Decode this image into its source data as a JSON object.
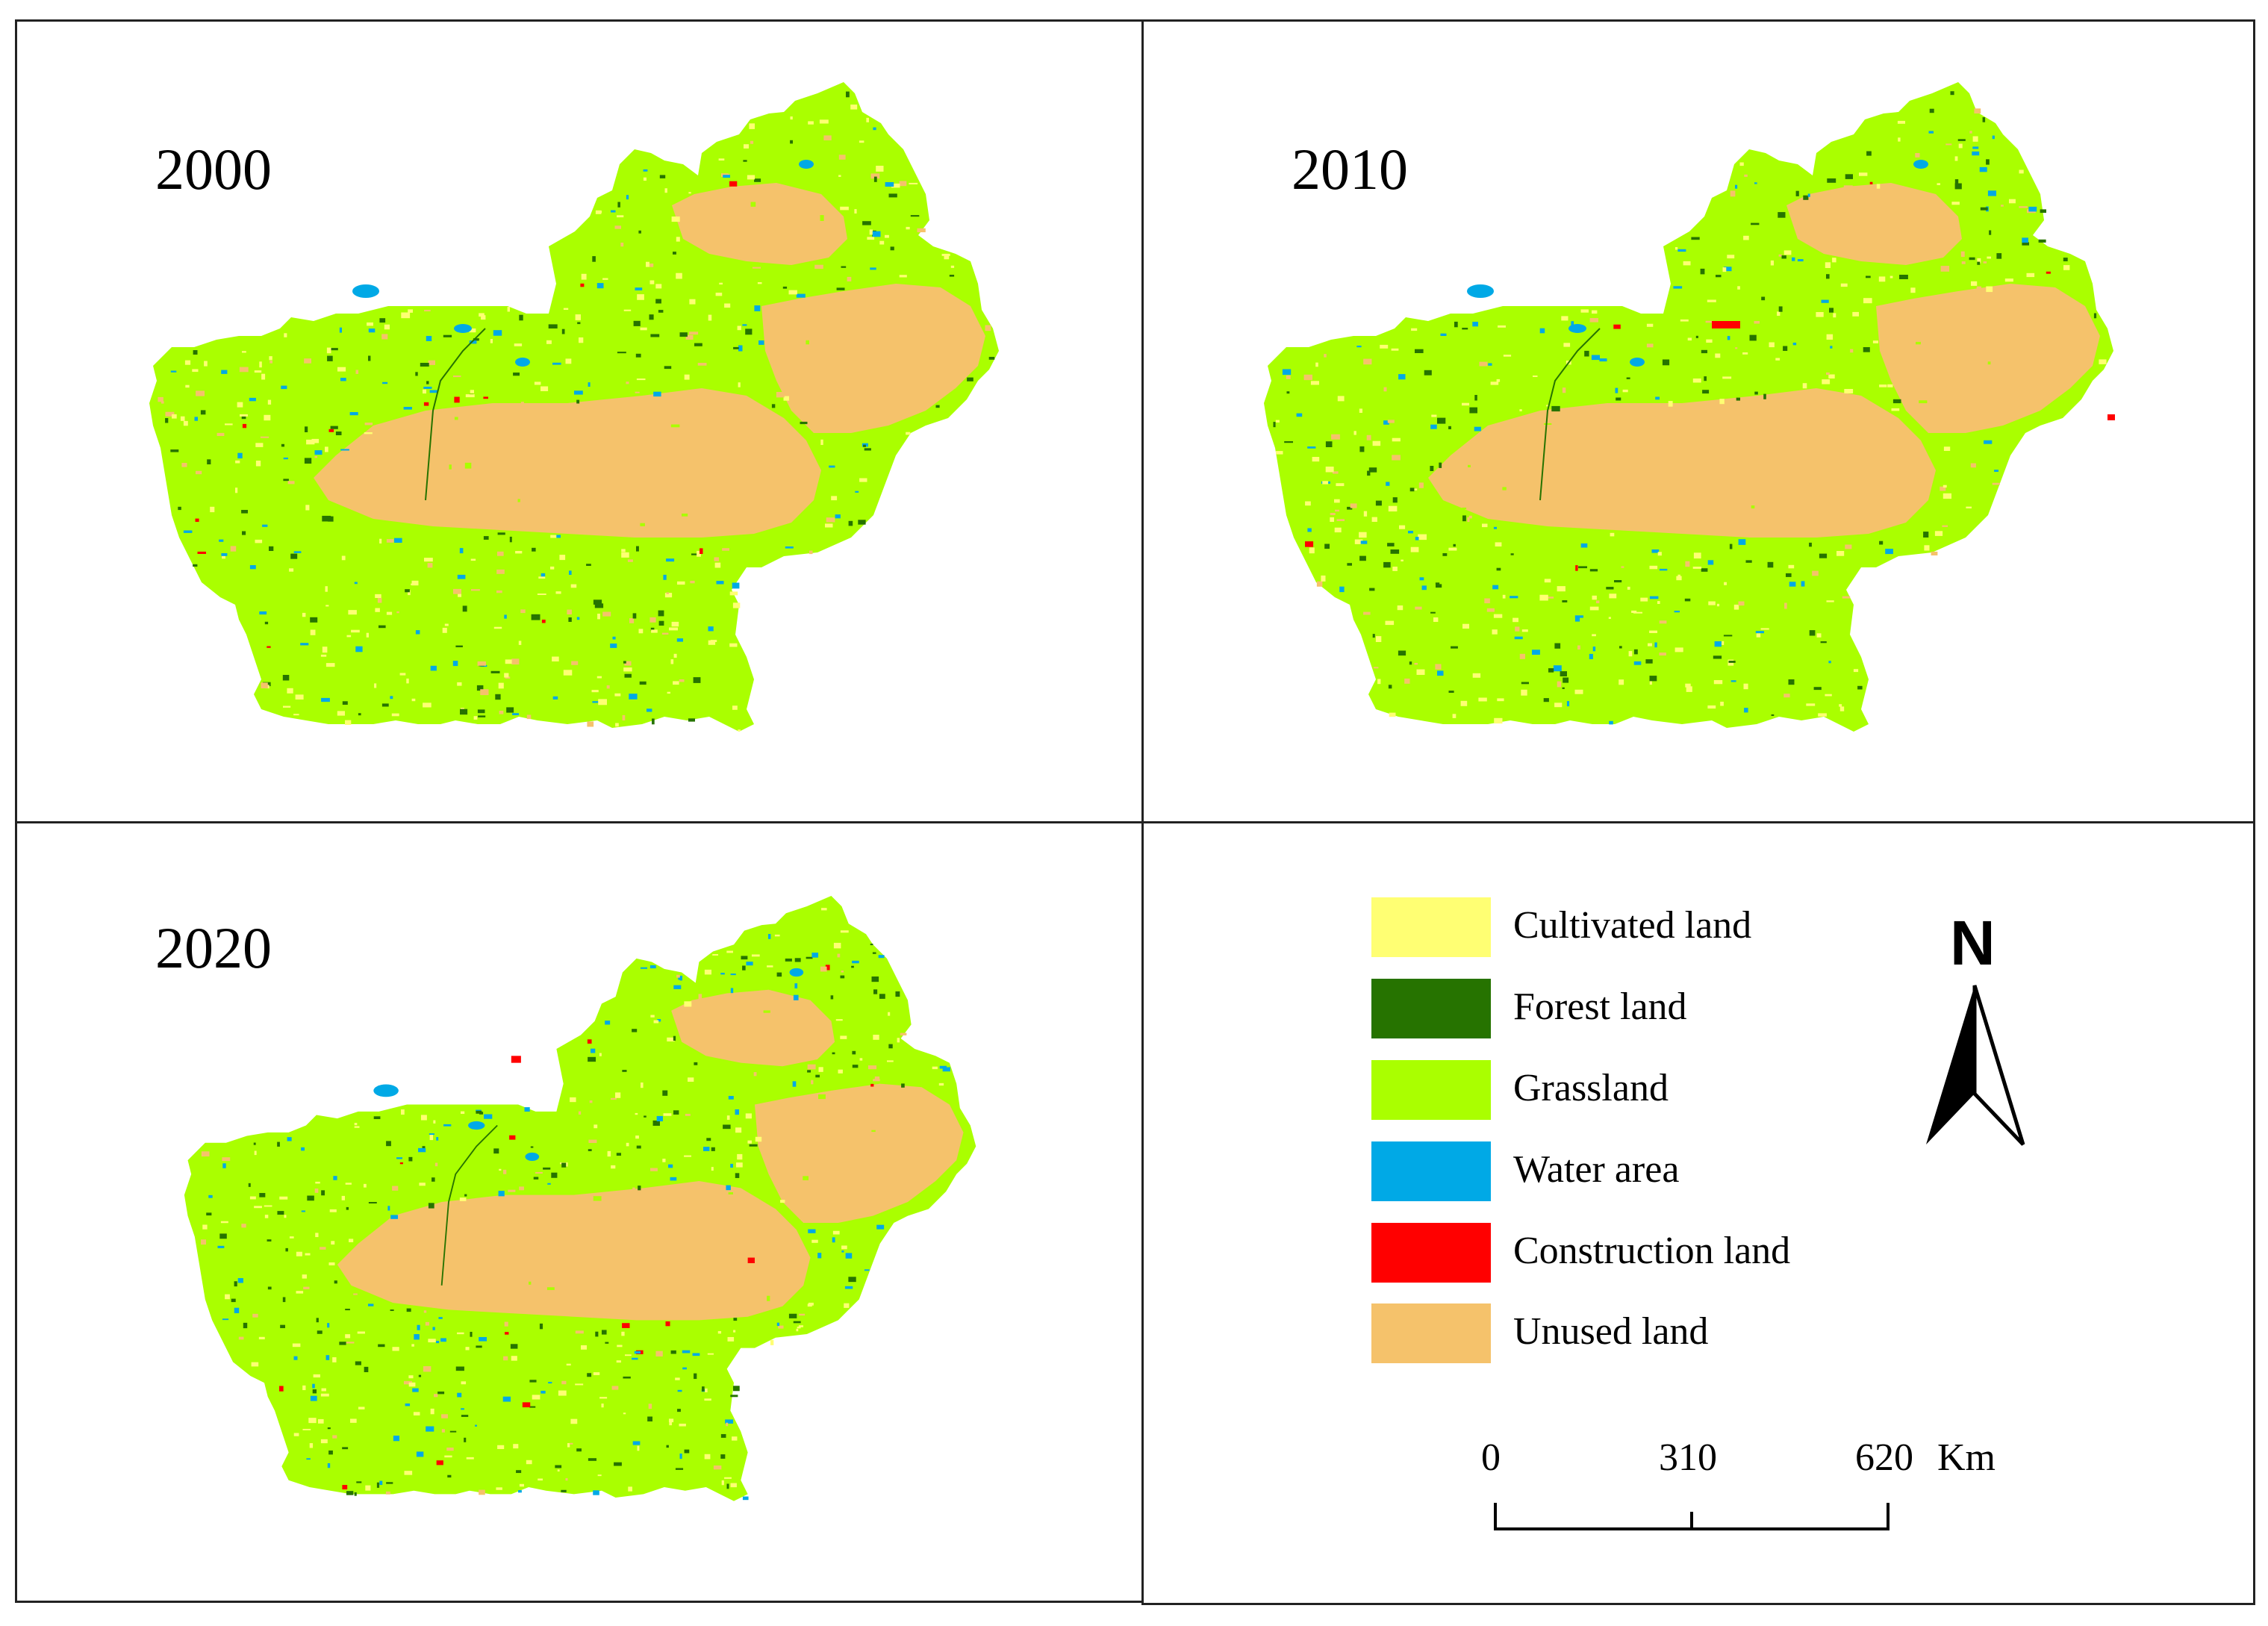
{
  "panels": [
    {
      "year": "2000"
    },
    {
      "year": "2010"
    },
    {
      "year": "2020"
    }
  ],
  "legend": {
    "items": [
      {
        "label": "Cultivated land",
        "color": "#ffff73"
      },
      {
        "label": "Forest land",
        "color": "#267300"
      },
      {
        "label": "Grassland",
        "color": "#aaff00"
      },
      {
        "label": "Water area",
        "color": "#00a9e6"
      },
      {
        "label": "Construction land",
        "color": "#ff0000"
      },
      {
        "label": "Unused land",
        "color": "#f5c26b"
      }
    ]
  },
  "north_arrow": {
    "letter": "N",
    "icon": "north-arrow-icon"
  },
  "scale_bar": {
    "ticks": [
      "0",
      "310",
      "620"
    ],
    "unit": "Km"
  }
}
